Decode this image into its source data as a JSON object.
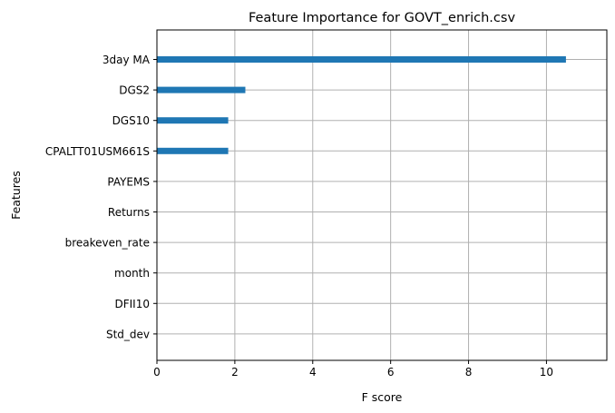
{
  "chart_data": {
    "type": "bar",
    "orientation": "horizontal",
    "title": "Feature Importance for GOVT_enrich.csv",
    "xlabel": "F score",
    "ylabel": "Features",
    "categories": [
      "3day MA",
      "DGS2",
      "DGS10",
      "CPALTT01USM661S",
      "PAYEMS",
      "Returns",
      "breakeven_rate",
      "month",
      "DFII10",
      "Std_dev"
    ],
    "values": [
      10.5,
      2.27,
      1.83,
      1.83,
      0,
      0,
      0,
      0,
      0,
      0
    ],
    "xlim": [
      0,
      11.55
    ],
    "xticks": [
      0,
      2,
      4,
      6,
      8,
      10
    ],
    "grid": true,
    "bar_color": "#1f77b4",
    "grid_color": "#b0b0b0"
  }
}
